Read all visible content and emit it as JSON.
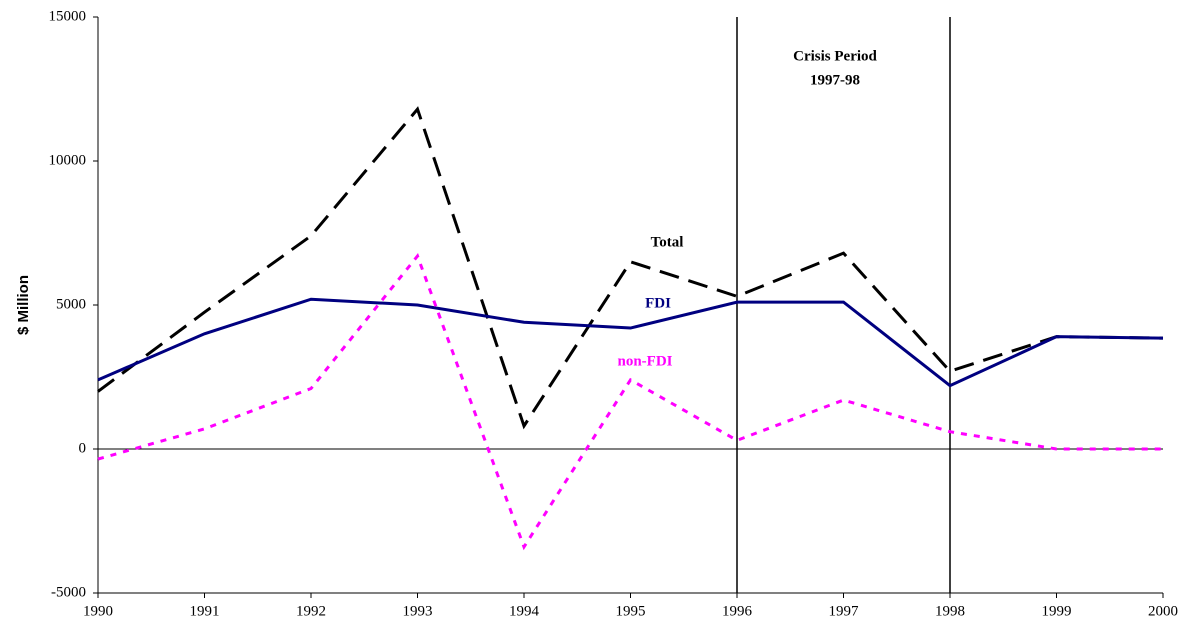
{
  "chart_data": {
    "type": "line",
    "y_label": "$ Million",
    "annotation": [
      "Crisis Period",
      "1997-98"
    ],
    "x": [
      1990,
      1991,
      1992,
      1993,
      1994,
      1995,
      1996,
      1997,
      1998,
      1999,
      2000
    ],
    "xlim": [
      1990,
      2000
    ],
    "xticks": [
      1990,
      1991,
      1992,
      1993,
      1994,
      1995,
      1996,
      1997,
      1998,
      1999,
      2000
    ],
    "ylim": [
      -5000,
      15000
    ],
    "yticks": [
      -5000,
      0,
      5000,
      10000,
      15000
    ],
    "vlines": [
      1996,
      1998
    ],
    "series": [
      {
        "name": "Total",
        "color": "#000000",
        "style": "dashed",
        "values": [
          2000,
          4750,
          7400,
          11800,
          800,
          6500,
          5300,
          6800,
          2700,
          3900,
          3850
        ]
      },
      {
        "name": "FDI",
        "color": "#000080",
        "style": "solid",
        "values": [
          2400,
          4000,
          5200,
          5000,
          4400,
          4200,
          5100,
          5100,
          2200,
          3900,
          3850
        ]
      },
      {
        "name": "non-FDI",
        "color": "#ff00ff",
        "style": "dotted",
        "values": [
          -350,
          700,
          2100,
          6700,
          -3400,
          2400,
          300,
          1700,
          600,
          0,
          0
        ]
      }
    ]
  }
}
